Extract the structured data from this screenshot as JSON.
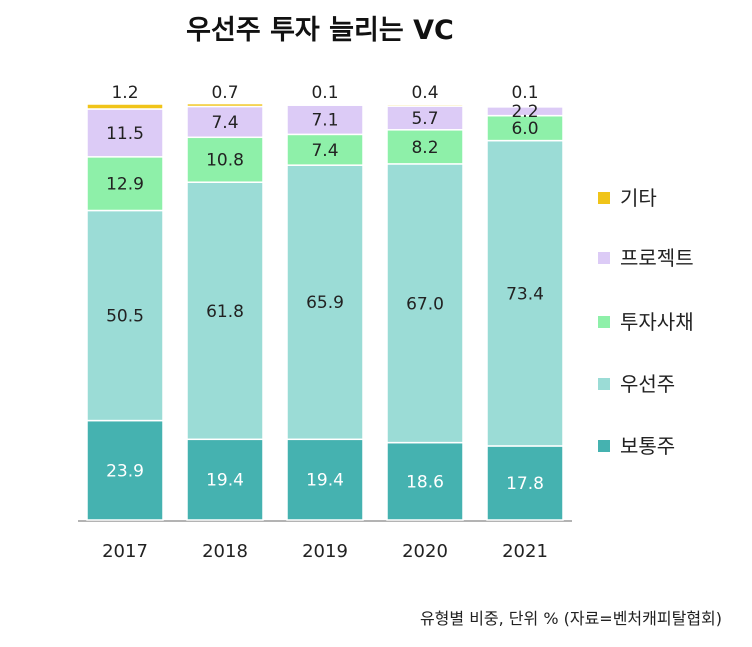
{
  "chart_data": {
    "type": "bar",
    "stacked": true,
    "title": "우선주 투자 늘리는 VC",
    "note": "유형별 비중, 단위 % (자료=벤처캐피탈협회)",
    "categories": [
      "2017",
      "2018",
      "2019",
      "2020",
      "2021"
    ],
    "ylim": [
      0,
      100
    ],
    "legend_position": "right",
    "series": [
      {
        "name": "보통주",
        "color": "#45b2b0",
        "label_color": "#ffffff",
        "values": [
          23.9,
          19.4,
          19.4,
          18.6,
          17.8
        ]
      },
      {
        "name": "우선주",
        "color": "#9bdcd6",
        "label_color": "#222222",
        "values": [
          50.5,
          61.8,
          65.9,
          67.0,
          73.4
        ]
      },
      {
        "name": "투자사채",
        "color": "#8ef0a9",
        "label_color": "#222222",
        "values": [
          12.9,
          10.8,
          7.4,
          8.2,
          6.0
        ]
      },
      {
        "name": "프로젝트",
        "color": "#dccbf6",
        "label_color": "#222222",
        "values": [
          11.5,
          7.4,
          7.1,
          5.7,
          2.2
        ]
      },
      {
        "name": "기타",
        "color": "#f0c419",
        "label_color": "#222222",
        "values": [
          1.2,
          0.7,
          0.1,
          0.4,
          0.1
        ]
      }
    ]
  }
}
